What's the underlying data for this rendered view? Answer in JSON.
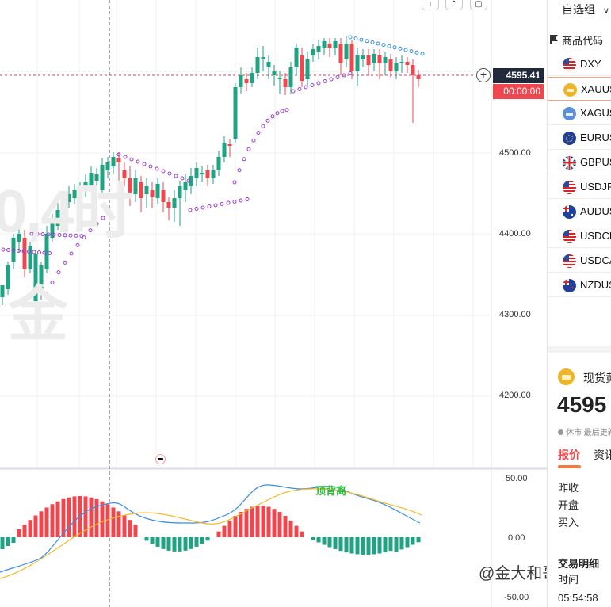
{
  "chart_toolbar": {
    "download_icon": "arrow-down-icon",
    "collapse_icon": "chevron-up-icon",
    "fullscreen_icon": "square-icon"
  },
  "watermark": {
    "line1": "0,4时",
    "line2": "金"
  },
  "price_axis": {
    "ticks": [
      "4500.00",
      "4400.00",
      "4300.00",
      "4200.00"
    ],
    "current_price": "4595.41",
    "countdown": "00:00:00"
  },
  "macd_axis": {
    "ticks": [
      "50.00",
      "0.00",
      "-50.00"
    ]
  },
  "annotation": {
    "divergence": "顶背离"
  },
  "credit": "@金大和哥",
  "colors": {
    "up": "#f0474f",
    "down": "#1fa383",
    "dif": "#3a8ee6",
    "dea": "#f5b92b",
    "sar": "#9a3fd0"
  },
  "watchlist": {
    "title": "自选组",
    "title_arrow": "∨",
    "column_header": "商品代码",
    "rows": [
      {
        "symbol": "DXY",
        "flag": "us"
      },
      {
        "symbol": "XAUUSD",
        "flag": "gold"
      },
      {
        "symbol": "XAGUSD",
        "flag": "silver"
      },
      {
        "symbol": "EURUSD",
        "flag": "eu"
      },
      {
        "symbol": "GBPUSD",
        "flag": "gb"
      },
      {
        "symbol": "USDJPY",
        "flag": "us"
      },
      {
        "symbol": "AUDUSD",
        "flag": "au"
      },
      {
        "symbol": "USDCHF",
        "flag": "us"
      },
      {
        "symbol": "USDCAD",
        "flag": "us"
      },
      {
        "symbol": "NZDUSD",
        "flag": "nz"
      }
    ]
  },
  "detail": {
    "name": "现货黄金",
    "price": "4595",
    "status": "休市 最后更新",
    "tab_quote": "报价",
    "tab_info": "资讯",
    "fields": [
      "昨收",
      "开盘",
      "买入"
    ],
    "trade_title": "交易明细",
    "trade_col": "时间",
    "trade_time": "05:54:58"
  }
}
